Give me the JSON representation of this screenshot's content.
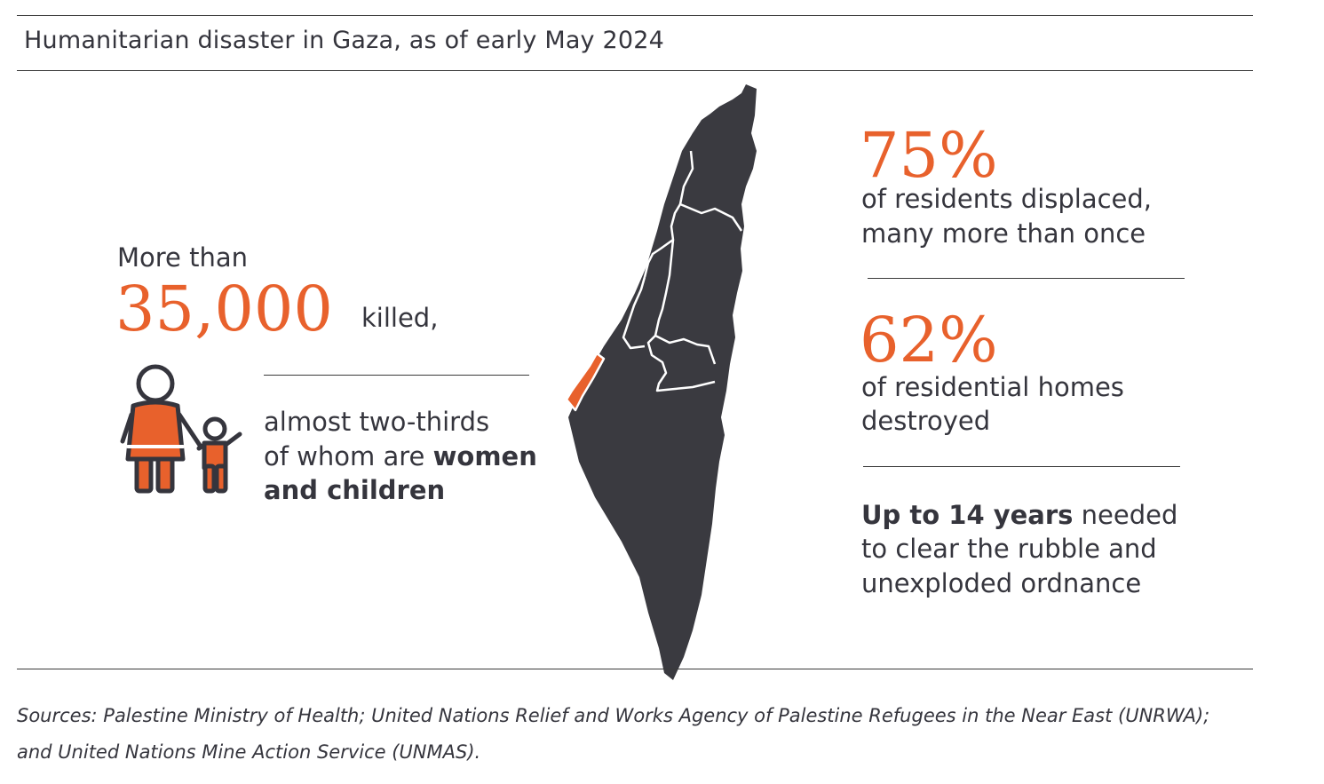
{
  "title": "Humanitarian disaster in Gaza, as of early May 2024",
  "killed": {
    "prefix": "More than",
    "number": "35,000",
    "suffix": "killed,",
    "note_line1": "almost two-thirds",
    "note_line2_plain": "of whom are ",
    "note_line2_bold": "women",
    "note_line3_bold": "and children"
  },
  "displaced": {
    "percent": "75%",
    "line1": "of residents displaced,",
    "line2": "many more than once"
  },
  "homes": {
    "percent": "62%",
    "line1": "of residential homes",
    "line2": "destroyed"
  },
  "rubble": {
    "bold": "Up to 14 years",
    "line1_rest": " needed",
    "line2": "to clear the rubble and",
    "line3": "unexploded ordnance"
  },
  "sources": {
    "line1": "Sources: Palestine Ministry of Health; United Nations Relief and Works Agency of Palestine Refugees in the Near East (UNRWA);",
    "line2": "and United Nations Mine Action Service (UNMAS)."
  },
  "colors": {
    "accent": "#e8612c",
    "map": "#3a3a40",
    "text": "#35353d"
  },
  "icons": [
    "woman-child-icon",
    "region-map-icon"
  ]
}
